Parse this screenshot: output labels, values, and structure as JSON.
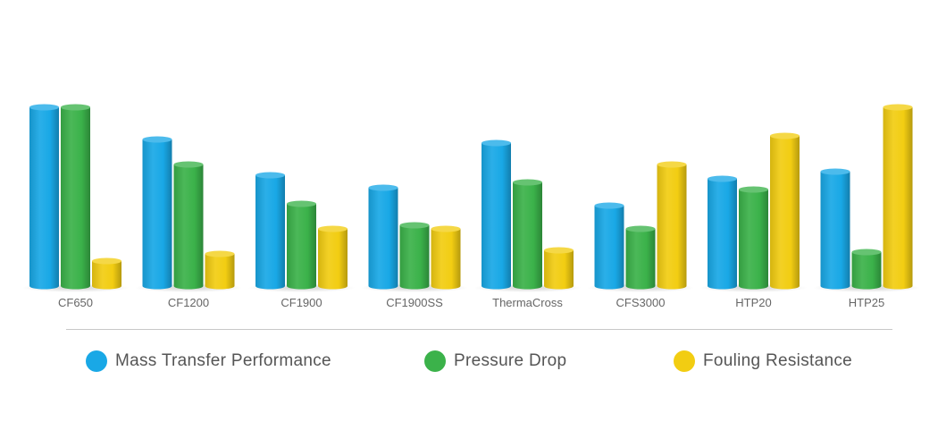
{
  "chart_data": {
    "type": "bar",
    "categories": [
      "CF650",
      "CF1200",
      "CF1900",
      "CF1900SS",
      "ThermaCross",
      "CFS3000",
      "HTP20",
      "HTP25"
    ],
    "series": [
      {
        "name": "Mass Transfer Performance",
        "color": "#19a8e6",
        "values": [
          10,
          8.2,
          6.2,
          5.5,
          8.0,
          4.5,
          6.0,
          6.4
        ]
      },
      {
        "name": "Pressure Drop",
        "color": "#3bb24a",
        "values": [
          10,
          6.8,
          4.6,
          3.4,
          5.8,
          3.2,
          5.4,
          1.9
        ]
      },
      {
        "name": "Fouling Resistance",
        "color": "#f2cd12",
        "values": [
          1.4,
          1.8,
          3.2,
          3.2,
          2.0,
          6.8,
          8.4,
          10
        ]
      }
    ],
    "ylim": [
      0,
      10
    ],
    "legend_position": "bottom",
    "grid": false
  }
}
